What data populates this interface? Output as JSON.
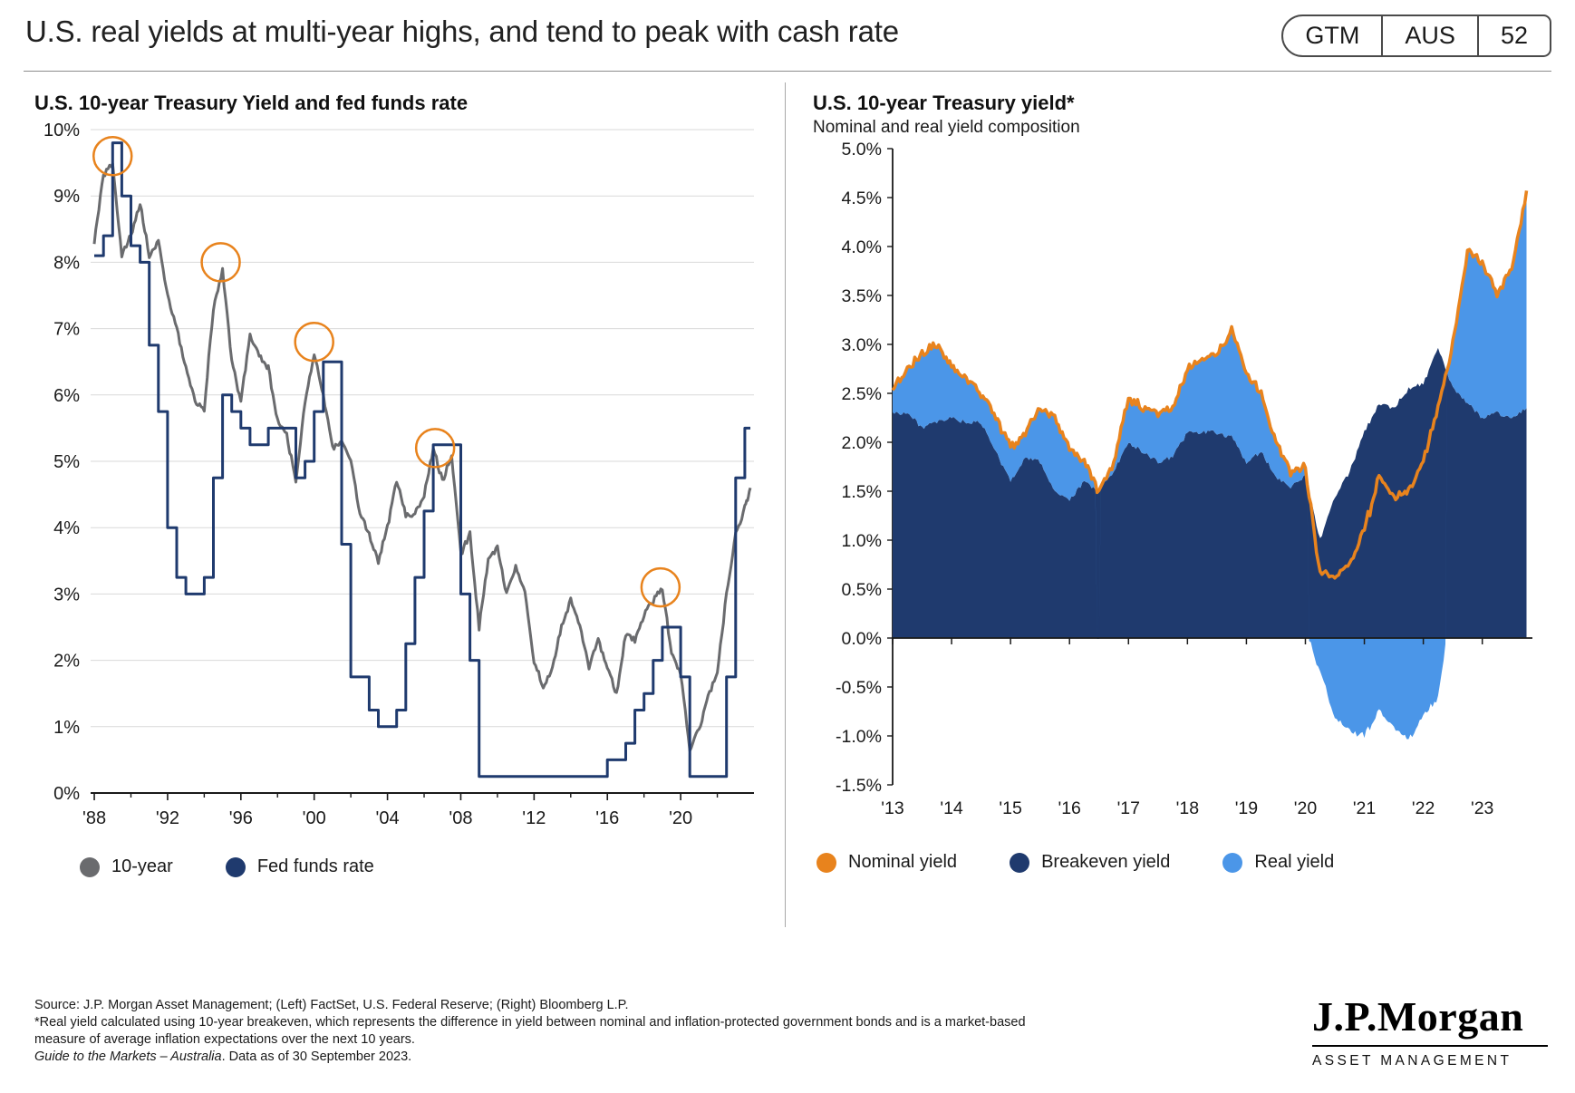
{
  "page": {
    "title": "U.S. real yields at multi-year highs, and tend to peak with cash rate",
    "badge": {
      "gtm": "GTM",
      "region": "AUS",
      "page_number": "52"
    }
  },
  "colors": {
    "gray_line": "#6A6B6E",
    "navy": "#1F3A6E",
    "light_blue": "#4B96E8",
    "orange": "#E8831D",
    "grid": "#D9D9D9",
    "axis": "#1A1A1A"
  },
  "chart_data": [
    {
      "type": "line",
      "title": "U.S. 10-year Treasury Yield and fed funds rate",
      "xlabel": "",
      "ylabel": "",
      "xlim": [
        1987.8,
        2024.0
      ],
      "ylim": [
        0,
        10
      ],
      "grid": "horizontal",
      "legend_position": "bottom",
      "y_ticks": [
        {
          "v": 0,
          "label": "0%"
        },
        {
          "v": 1,
          "label": "1%"
        },
        {
          "v": 2,
          "label": "2%"
        },
        {
          "v": 3,
          "label": "3%"
        },
        {
          "v": 4,
          "label": "4%"
        },
        {
          "v": 5,
          "label": "5%"
        },
        {
          "v": 6,
          "label": "6%"
        },
        {
          "v": 7,
          "label": "7%"
        },
        {
          "v": 8,
          "label": "8%"
        },
        {
          "v": 9,
          "label": "9%"
        },
        {
          "v": 10,
          "label": "10%"
        }
      ],
      "x_ticks": [
        {
          "v": 1988,
          "label": "'88"
        },
        {
          "v": 1992,
          "label": "'92"
        },
        {
          "v": 1996,
          "label": "'96"
        },
        {
          "v": 2000,
          "label": "'00"
        },
        {
          "v": 2004,
          "label": "'04"
        },
        {
          "v": 2008,
          "label": "'08"
        },
        {
          "v": 2012,
          "label": "'12"
        },
        {
          "v": 2016,
          "label": "'16"
        },
        {
          "v": 2020,
          "label": "'20"
        }
      ],
      "x_minor_ticks": [
        1990,
        1994,
        1998,
        2002,
        2006,
        2010,
        2014,
        2018,
        2022
      ],
      "x": [
        1988,
        1988.5,
        1989,
        1989.5,
        1990,
        1990.5,
        1991,
        1991.5,
        1992,
        1992.5,
        1993,
        1993.5,
        1994,
        1994.5,
        1995,
        1995.5,
        1996,
        1996.5,
        1997,
        1997.5,
        1998,
        1998.5,
        1999,
        1999.5,
        2000,
        2000.5,
        2001,
        2001.5,
        2002,
        2002.5,
        2003,
        2003.5,
        2004,
        2004.5,
        2005,
        2005.5,
        2006,
        2006.5,
        2007,
        2007.5,
        2008,
        2008.5,
        2009,
        2009.5,
        2010,
        2010.5,
        2011,
        2011.5,
        2012,
        2012.5,
        2013,
        2013.5,
        2014,
        2014.5,
        2015,
        2015.5,
        2016,
        2016.5,
        2017,
        2017.5,
        2018,
        2018.5,
        2019,
        2019.5,
        2020,
        2020.5,
        2021,
        2021.5,
        2022,
        2022.5,
        2023,
        2023.5,
        2023.8
      ],
      "series": [
        {
          "name": "10-year",
          "color": "#6A6B6E",
          "render": "jagged-line",
          "values": [
            8.3,
            9.3,
            9.5,
            8.1,
            8.4,
            8.9,
            8.1,
            8.3,
            7.5,
            7.0,
            6.4,
            5.9,
            5.8,
            7.3,
            7.9,
            6.5,
            5.9,
            6.9,
            6.6,
            6.4,
            5.6,
            5.4,
            4.7,
            5.9,
            6.6,
            6.0,
            5.2,
            5.3,
            5.0,
            4.2,
            3.9,
            3.5,
            4.0,
            4.7,
            4.2,
            4.2,
            4.5,
            5.2,
            4.7,
            5.1,
            3.6,
            3.9,
            2.5,
            3.5,
            3.7,
            3.0,
            3.4,
            3.0,
            2.0,
            1.6,
            1.9,
            2.5,
            2.9,
            2.5,
            1.9,
            2.3,
            1.9,
            1.5,
            2.4,
            2.3,
            2.7,
            2.9,
            3.1,
            2.1,
            1.8,
            0.65,
            0.95,
            1.45,
            1.8,
            3.0,
            3.9,
            4.3,
            4.6
          ]
        },
        {
          "name": "Fed funds rate",
          "color": "#1F3A6E",
          "render": "step-line",
          "values": [
            8.1,
            8.4,
            9.8,
            9.0,
            8.25,
            8.0,
            6.75,
            5.75,
            4.0,
            3.25,
            3.0,
            3.0,
            3.25,
            4.75,
            6.0,
            5.75,
            5.5,
            5.25,
            5.25,
            5.5,
            5.5,
            5.5,
            4.75,
            5.0,
            5.75,
            6.5,
            6.5,
            3.75,
            1.75,
            1.75,
            1.25,
            1.0,
            1.0,
            1.25,
            2.25,
            3.25,
            4.25,
            5.25,
            5.25,
            5.25,
            3.0,
            2.0,
            0.25,
            0.25,
            0.25,
            0.25,
            0.25,
            0.25,
            0.25,
            0.25,
            0.25,
            0.25,
            0.25,
            0.25,
            0.25,
            0.25,
            0.5,
            0.5,
            0.75,
            1.25,
            1.5,
            2.0,
            2.5,
            2.5,
            1.75,
            0.25,
            0.25,
            0.25,
            0.25,
            1.75,
            4.75,
            5.5,
            5.5
          ]
        }
      ],
      "legend": [
        {
          "label": "10-year",
          "color": "#6A6B6E"
        },
        {
          "label": "Fed funds rate",
          "color": "#1F3A6E"
        }
      ],
      "annotations": {
        "circle_color": "#E8831D",
        "peak_circles": [
          {
            "x": 1989.0,
            "y": 9.6
          },
          {
            "x": 1994.9,
            "y": 8.0
          },
          {
            "x": 2000.0,
            "y": 6.8
          },
          {
            "x": 2006.6,
            "y": 5.2
          },
          {
            "x": 2018.9,
            "y": 3.1
          }
        ]
      }
    },
    {
      "type": "area",
      "title": "U.S. 10-year Treasury yield*",
      "subtitle": "Nominal and real yield composition",
      "xlabel": "",
      "ylabel": "",
      "xlim": [
        2013.0,
        2023.85
      ],
      "ylim": [
        -1.5,
        5.0
      ],
      "grid": "off",
      "legend_position": "bottom",
      "stacking_note": "Real yield stacks above breakeven when positive; drawn below zero when negative. Nominal = breakeven + real.",
      "y_ticks": [
        {
          "v": 5.0,
          "label": "5.0%"
        },
        {
          "v": 4.5,
          "label": "4.5%"
        },
        {
          "v": 4.0,
          "label": "4.0%"
        },
        {
          "v": 3.5,
          "label": "3.5%"
        },
        {
          "v": 3.0,
          "label": "3.0%"
        },
        {
          "v": 2.5,
          "label": "2.5%"
        },
        {
          "v": 2.0,
          "label": "2.0%"
        },
        {
          "v": 1.5,
          "label": "1.5%"
        },
        {
          "v": 1.0,
          "label": "1.0%"
        },
        {
          "v": 0.5,
          "label": "0.5%"
        },
        {
          "v": 0.0,
          "label": "0.0%"
        },
        {
          "v": -0.5,
          "label": "-0.5%"
        },
        {
          "v": -1.0,
          "label": "-1.0%"
        },
        {
          "v": -1.5,
          "label": "-1.5%"
        }
      ],
      "x_ticks": [
        {
          "v": 2013,
          "label": "'13"
        },
        {
          "v": 2014,
          "label": "'14"
        },
        {
          "v": 2015,
          "label": "'15"
        },
        {
          "v": 2016,
          "label": "'16"
        },
        {
          "v": 2017,
          "label": "'17"
        },
        {
          "v": 2018,
          "label": "'18"
        },
        {
          "v": 2019,
          "label": "'19"
        },
        {
          "v": 2020,
          "label": "'20"
        },
        {
          "v": 2021,
          "label": "'21"
        },
        {
          "v": 2022,
          "label": "'22"
        },
        {
          "v": 2023,
          "label": "'23"
        }
      ],
      "x": [
        2013,
        2013.25,
        2013.5,
        2013.75,
        2014,
        2014.25,
        2014.5,
        2014.75,
        2015,
        2015.25,
        2015.5,
        2015.75,
        2016,
        2016.25,
        2016.5,
        2016.75,
        2017,
        2017.25,
        2017.5,
        2017.75,
        2018,
        2018.25,
        2018.5,
        2018.75,
        2019,
        2019.25,
        2019.5,
        2019.75,
        2020,
        2020.25,
        2020.5,
        2020.75,
        2021,
        2021.25,
        2021.5,
        2021.75,
        2022,
        2022.25,
        2022.5,
        2022.75,
        2023,
        2023.25,
        2023.5,
        2023.75
      ],
      "series": [
        {
          "name": "Nominal yield",
          "color": "#E8831D",
          "render": "line",
          "values": [
            2.55,
            2.75,
            2.9,
            3.0,
            2.75,
            2.65,
            2.5,
            2.25,
            1.95,
            2.1,
            2.35,
            2.25,
            1.95,
            1.8,
            1.5,
            1.8,
            2.45,
            2.35,
            2.3,
            2.35,
            2.75,
            2.85,
            2.9,
            3.15,
            2.7,
            2.5,
            2.0,
            1.7,
            1.75,
            0.65,
            0.65,
            0.75,
            1.1,
            1.65,
            1.45,
            1.5,
            1.8,
            2.35,
            3.0,
            3.95,
            3.85,
            3.5,
            3.8,
            4.57
          ]
        },
        {
          "name": "Breakeven yield",
          "color": "#1F3A6E",
          "render": "area",
          "values": [
            2.3,
            2.3,
            2.15,
            2.2,
            2.25,
            2.2,
            2.2,
            1.9,
            1.6,
            1.85,
            1.8,
            1.5,
            1.4,
            1.6,
            1.5,
            1.7,
            2.0,
            1.9,
            1.8,
            1.85,
            2.1,
            2.1,
            2.1,
            2.05,
            1.8,
            1.9,
            1.65,
            1.55,
            1.65,
            1.0,
            1.45,
            1.7,
            2.1,
            2.4,
            2.35,
            2.55,
            2.6,
            2.95,
            2.55,
            2.4,
            2.25,
            2.3,
            2.25,
            2.35
          ]
        },
        {
          "name": "Real yield",
          "color": "#4B96E8",
          "render": "area-stacked",
          "values": [
            0.25,
            0.45,
            0.75,
            0.8,
            0.5,
            0.45,
            0.3,
            0.35,
            0.35,
            0.25,
            0.55,
            0.75,
            0.55,
            0.2,
            0.0,
            0.1,
            0.45,
            0.45,
            0.5,
            0.5,
            0.65,
            0.75,
            0.8,
            1.1,
            0.9,
            0.6,
            0.35,
            0.15,
            0.1,
            -0.35,
            -0.8,
            -0.95,
            -1.0,
            -0.75,
            -0.9,
            -1.05,
            -0.8,
            -0.6,
            0.45,
            1.55,
            1.6,
            1.2,
            1.55,
            2.22
          ]
        }
      ],
      "legend": [
        {
          "label": "Nominal yield",
          "color": "#E8831D"
        },
        {
          "label": "Breakeven yield",
          "color": "#1F3A6E"
        },
        {
          "label": "Real yield",
          "color": "#4B96E8"
        }
      ]
    }
  ],
  "footer": {
    "source": "Source: J.P. Morgan Asset Management; (Left) FactSet, U.S. Federal Reserve; (Right) Bloomberg L.P.",
    "footnote1": "*Real yield calculated using 10-year breakeven, which represents the difference in yield between nominal and inflation-protected government bonds and is a market-based",
    "footnote2": "measure of average inflation expectations over the next 10 years.",
    "gtm_italic": "Guide to the Markets – Australia",
    "gtm_rest": ". Data as of 30 September 2023."
  },
  "logo": {
    "brand": "J.P.Morgan",
    "division": "ASSET MANAGEMENT"
  }
}
